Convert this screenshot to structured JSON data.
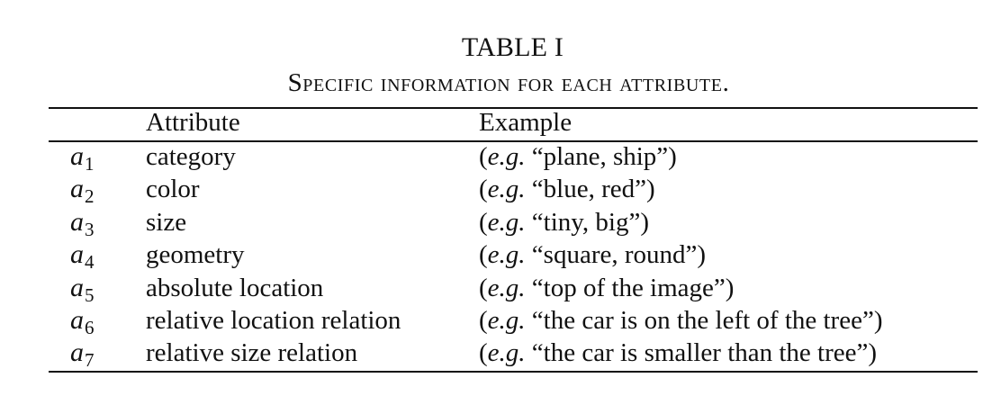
{
  "caption": {
    "title": "TABLE I",
    "subtitle": "Specific information for each attribute."
  },
  "table": {
    "headers": {
      "symbol": "",
      "attribute": "Attribute",
      "example": "Example"
    },
    "example_prefix": "e.g.",
    "rows": [
      {
        "symbol": "a",
        "sub": "1",
        "attribute": "category",
        "example": "“plane, ship”)"
      },
      {
        "symbol": "a",
        "sub": "2",
        "attribute": "color",
        "example": "“blue, red”)"
      },
      {
        "symbol": "a",
        "sub": "3",
        "attribute": "size",
        "example": "“tiny, big”)"
      },
      {
        "symbol": "a",
        "sub": "4",
        "attribute": "geometry",
        "example": "“square, round”)"
      },
      {
        "symbol": "a",
        "sub": "5",
        "attribute": "absolute location",
        "example": "“top of the image”)"
      },
      {
        "symbol": "a",
        "sub": "6",
        "attribute": "relative location relation",
        "example": "“the car is on the left of the tree”)"
      },
      {
        "symbol": "a",
        "sub": "7",
        "attribute": "relative size relation",
        "example": "“the car is smaller than the tree”)"
      }
    ]
  }
}
